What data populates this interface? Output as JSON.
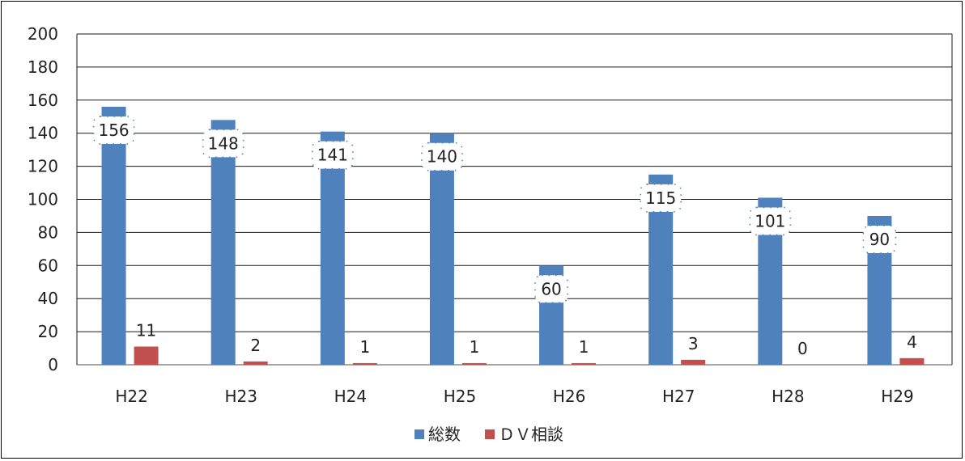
{
  "chart_data": {
    "type": "bar",
    "categories": [
      "H22",
      "H23",
      "H24",
      "H25",
      "H26",
      "H27",
      "H28",
      "H29"
    ],
    "series": [
      {
        "name": "総数",
        "values": [
          156,
          148,
          141,
          140,
          60,
          115,
          101,
          90
        ],
        "color": "#4f81bd"
      },
      {
        "name": "ＤＶ相談",
        "values": [
          11,
          2,
          1,
          1,
          1,
          3,
          0,
          4
        ],
        "color": "#c0504d"
      }
    ],
    "ylim": [
      0,
      200
    ],
    "yticks": [
      0,
      20,
      40,
      60,
      80,
      100,
      120,
      140,
      160,
      180,
      200
    ],
    "grid": true,
    "legend": "bottom",
    "data_labels": true
  }
}
